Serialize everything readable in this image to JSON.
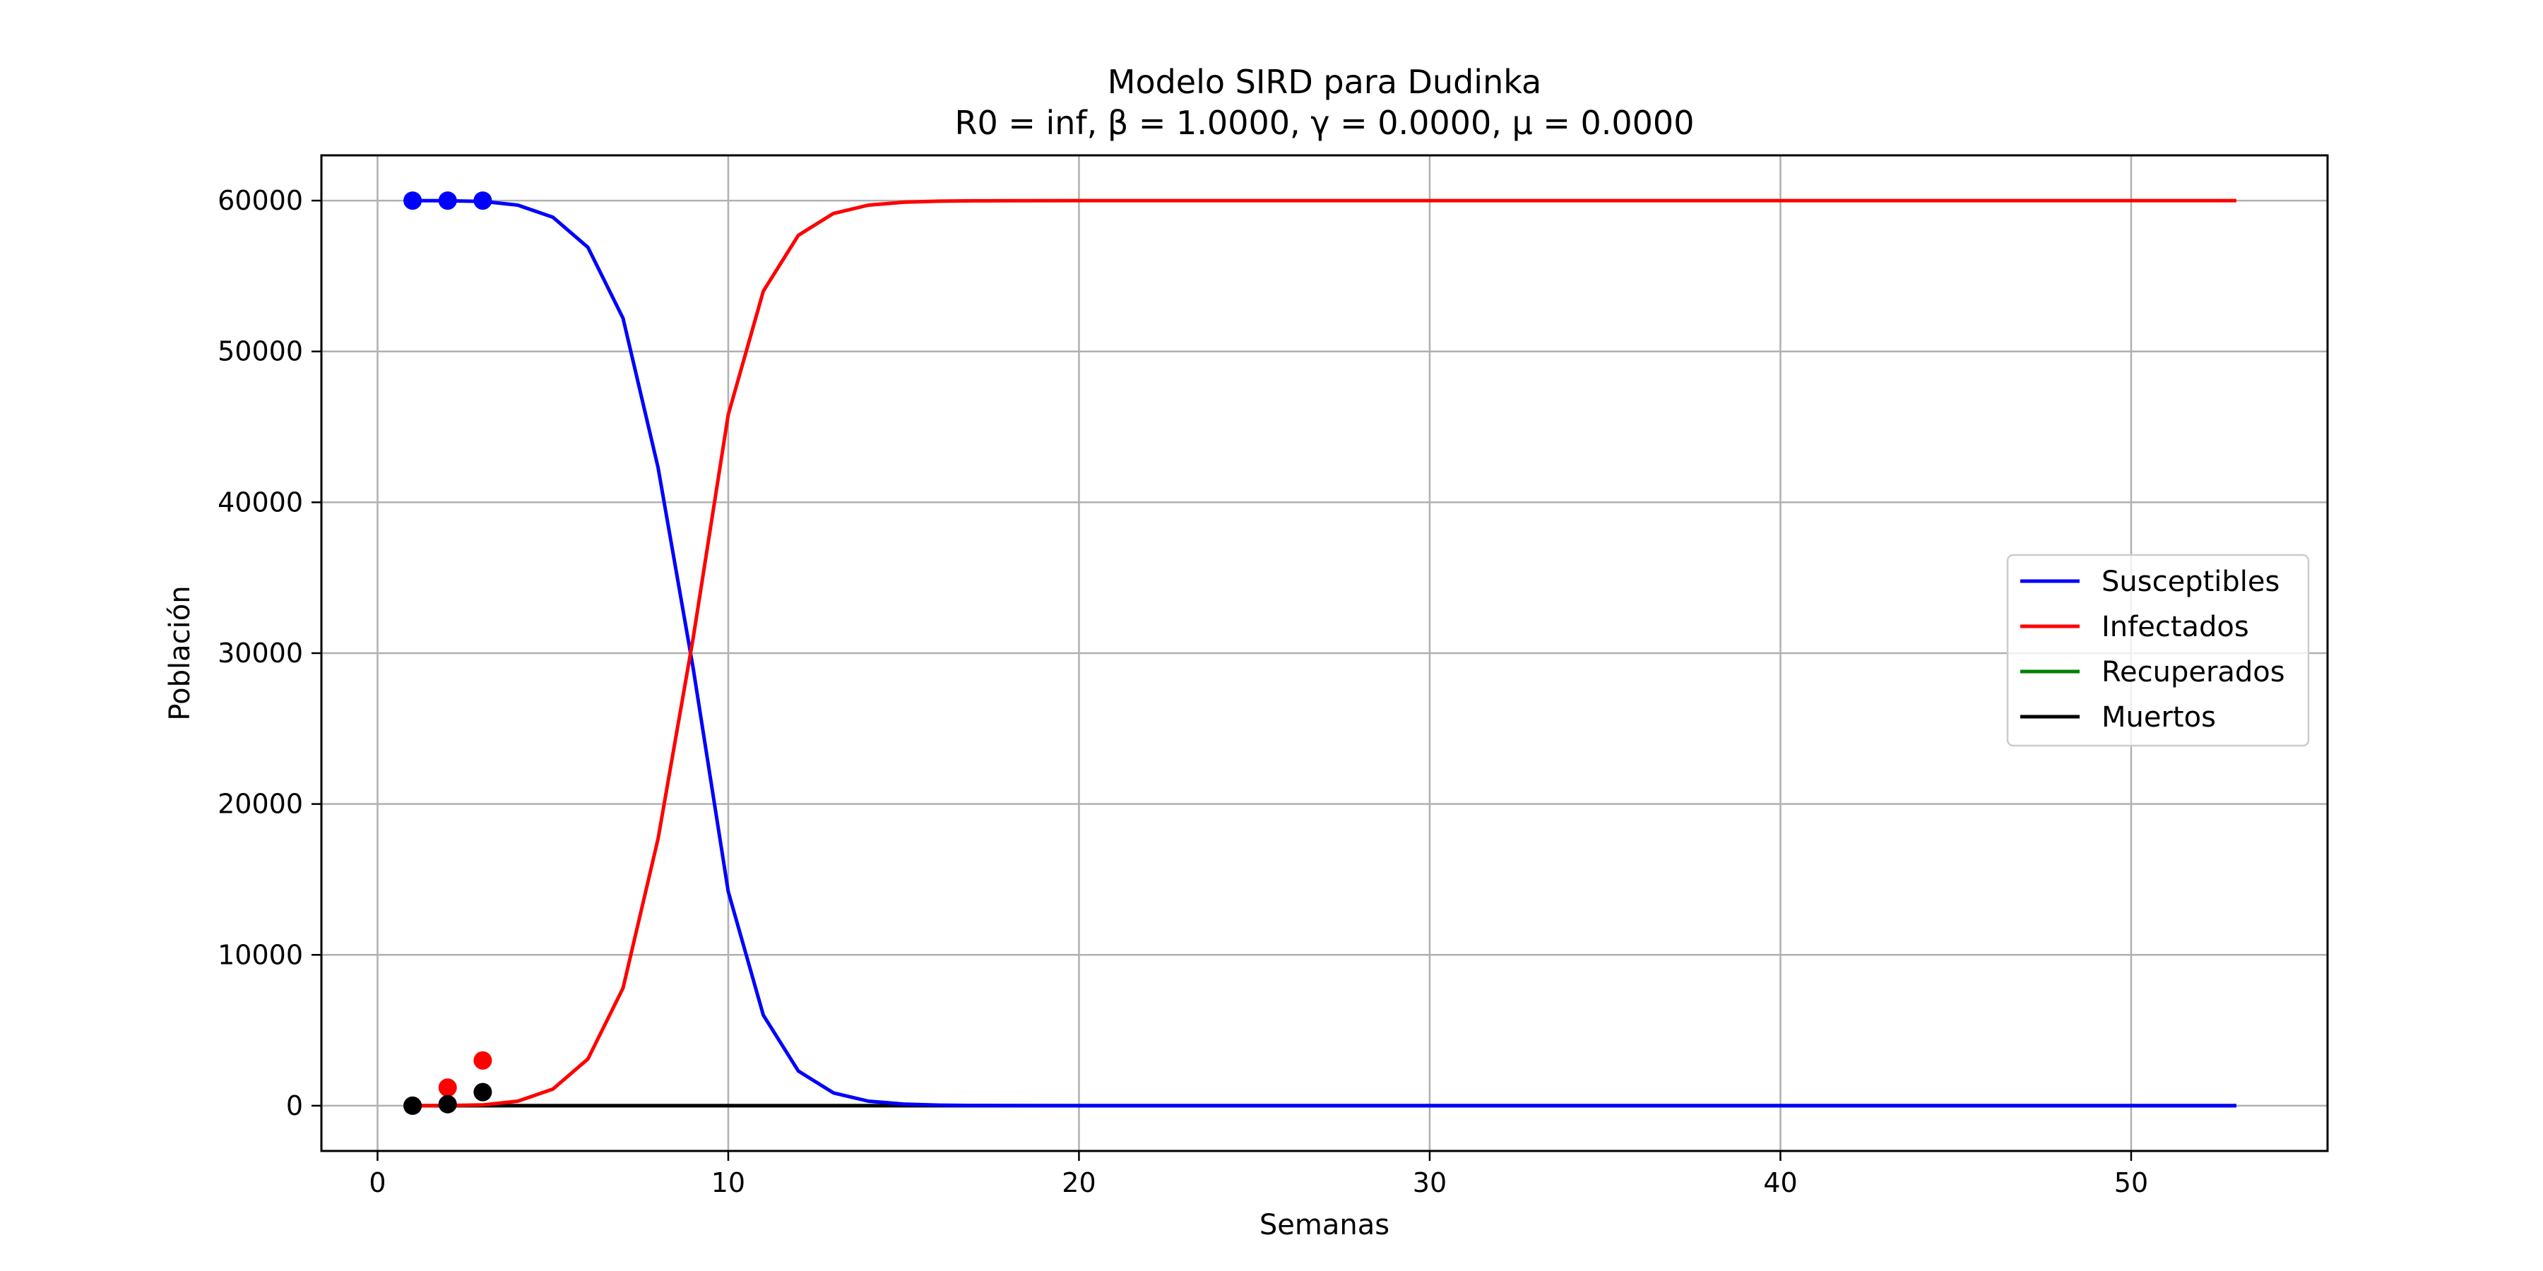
{
  "chart_data": {
    "type": "line",
    "title": "Modelo SIRD para Dudinka",
    "subtitle": "R0 = inf, β = 1.0000, γ = 0.0000, μ = 0.0000",
    "xlabel": "Semanas",
    "ylabel": "Población",
    "xlim": [
      -1.6,
      55.6
    ],
    "ylim": [
      -3000,
      63000
    ],
    "x_ticks": [
      0,
      10,
      20,
      30,
      40,
      50
    ],
    "y_ticks": [
      0,
      10000,
      20000,
      30000,
      40000,
      50000,
      60000
    ],
    "grid": true,
    "legend_position": "center-right",
    "series": [
      {
        "name": "Susceptibles",
        "color": "#0000ff",
        "x": [
          1,
          2,
          3,
          4,
          5,
          6,
          7,
          8,
          9,
          10,
          11,
          12,
          13,
          14,
          15,
          16,
          17,
          18,
          20,
          25,
          30,
          35,
          40,
          45,
          50,
          53
        ],
        "values": [
          60000,
          59990,
          59950,
          59700,
          58900,
          56900,
          52200,
          42300,
          29000,
          14200,
          6000,
          2300,
          850,
          300,
          110,
          40,
          15,
          5,
          0,
          0,
          0,
          0,
          0,
          0,
          0,
          0
        ]
      },
      {
        "name": "Infectados",
        "color": "#ff0000",
        "x": [
          1,
          2,
          3,
          4,
          5,
          6,
          7,
          8,
          9,
          10,
          11,
          12,
          13,
          14,
          15,
          16,
          17,
          18,
          20,
          25,
          30,
          35,
          40,
          45,
          50,
          53
        ],
        "values": [
          0,
          10,
          50,
          300,
          1100,
          3100,
          7800,
          17700,
          31000,
          45800,
          54000,
          57700,
          59150,
          59700,
          59890,
          59960,
          59985,
          59995,
          60000,
          60000,
          60000,
          60000,
          60000,
          60000,
          60000,
          60000
        ]
      },
      {
        "name": "Recuperados",
        "color": "#008000",
        "x": [
          1,
          53
        ],
        "values": [
          0,
          0
        ]
      },
      {
        "name": "Muertos",
        "color": "#000000",
        "x": [
          1,
          53
        ],
        "values": [
          0,
          0
        ]
      }
    ],
    "observed_points": [
      {
        "series": "Susceptibles",
        "color": "#0000ff",
        "x": [
          1,
          2,
          3
        ],
        "values": [
          60000,
          60000,
          60000
        ]
      },
      {
        "series": "Infectados",
        "color": "#ff0000",
        "x": [
          1,
          2,
          3
        ],
        "values": [
          0,
          1200,
          3000
        ]
      },
      {
        "series": "Muertos",
        "color": "#000000",
        "x": [
          1,
          2,
          3
        ],
        "values": [
          0,
          100,
          900
        ]
      }
    ]
  }
}
